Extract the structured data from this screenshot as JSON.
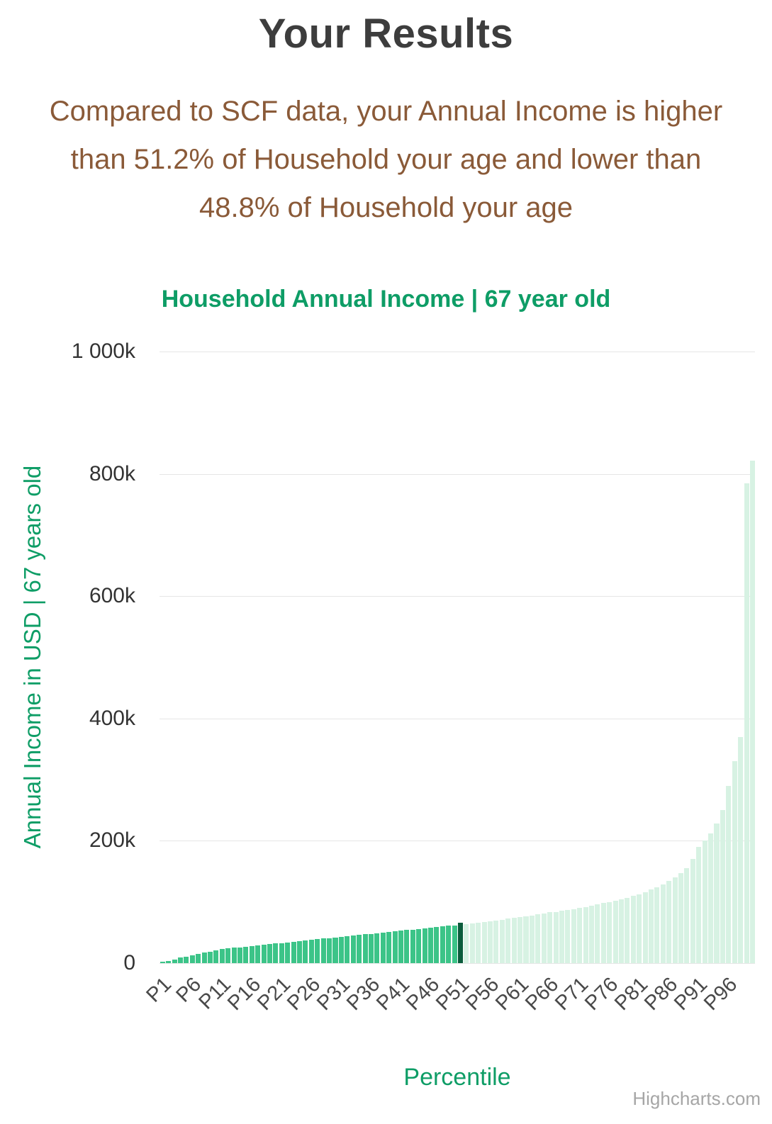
{
  "header": {
    "title": "Your Results"
  },
  "summary": {
    "text": "Compared to SCF data, your Annual Income is higher than 51.2% of Household your age and lower than 48.8% of Household your age",
    "higher_pct": "51.2%",
    "lower_pct": "48.8%"
  },
  "credit": {
    "label": "Highcharts.com"
  },
  "chart_data": {
    "type": "bar",
    "title": "Household Annual Income | 67 year old",
    "xlabel": "Percentile",
    "ylabel": "Annual Income in USD | 67 years old",
    "values_unit": "thousand USD",
    "ylim": [
      0,
      1000
    ],
    "y_tick_values": [
      0,
      200,
      400,
      600,
      800,
      1000
    ],
    "y_tick_labels": [
      "0",
      "200k",
      "400k",
      "600k",
      "800k",
      "1 000k"
    ],
    "x_tick_every": 5,
    "x_tick_labels": [
      "P1",
      "P6",
      "P11",
      "P16",
      "P21",
      "P26",
      "P31",
      "P36",
      "P41",
      "P46",
      "P51",
      "P56",
      "P61",
      "P66",
      "P71",
      "P76",
      "P81",
      "P86",
      "P91",
      "P96"
    ],
    "categories_format": "P{n} for n = 1..100",
    "values": [
      2,
      4,
      6,
      9,
      11,
      13,
      15,
      17,
      19,
      21,
      23,
      24,
      25,
      26,
      27,
      28,
      29,
      30,
      31,
      32,
      33,
      34,
      35,
      36,
      37,
      38,
      39,
      40,
      41,
      42,
      43,
      44,
      45,
      46,
      47,
      48,
      49,
      50,
      51,
      52,
      53,
      54,
      55,
      56,
      57,
      58,
      59,
      60,
      61,
      62,
      66,
      64,
      65,
      66,
      67,
      68,
      70,
      71,
      73,
      74,
      75,
      77,
      78,
      80,
      81,
      83,
      84,
      86,
      87,
      88,
      90,
      92,
      94,
      96,
      98,
      100,
      102,
      104,
      107,
      110,
      112,
      116,
      120,
      124,
      129,
      134,
      140,
      147,
      155,
      170,
      190,
      200,
      212,
      228,
      250,
      290,
      330,
      370,
      785,
      822
    ],
    "marker": {
      "index": 50,
      "category": "P51"
    },
    "legend": "none",
    "grid": "horizontal",
    "colors": {
      "bar_below_marker": "#3cc488",
      "bar_marker": "#0b5c3c",
      "bar_above_marker": "#d7f2e3",
      "gridline": "#e6e6e6",
      "title_green": "#0e9d66",
      "subtitle_brown": "#8a5a38"
    }
  }
}
